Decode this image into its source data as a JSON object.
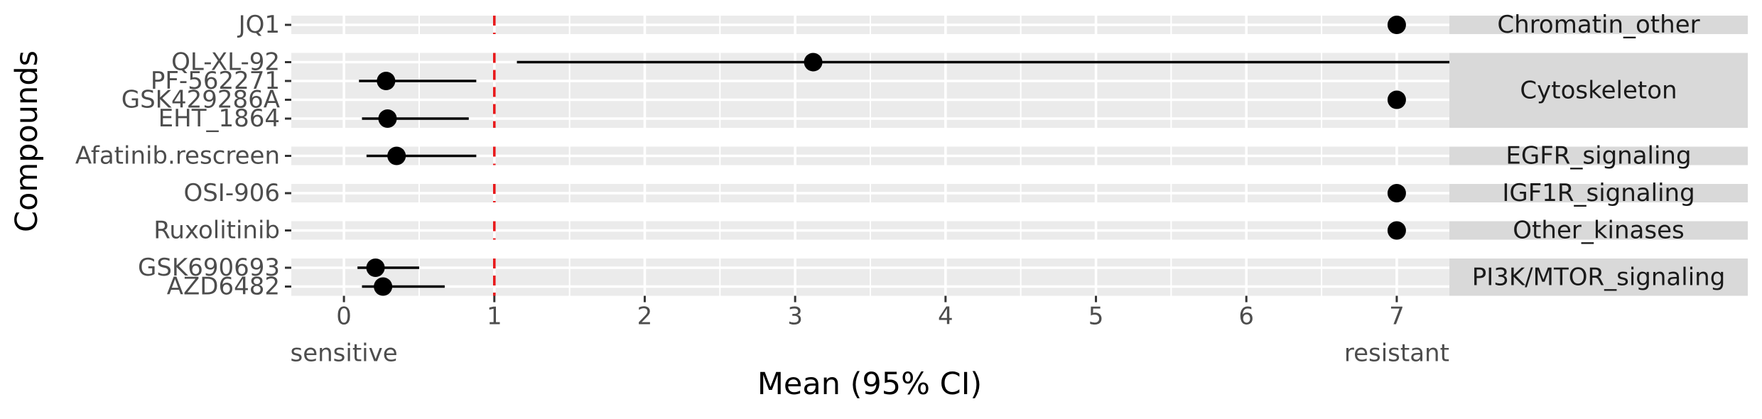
{
  "chart_data": {
    "type": "scatter",
    "subtype": "faceted-forest-plot",
    "xlabel": "Mean (95% CI)",
    "ylabel": "Compounds",
    "xlim": [
      -0.35,
      7.35
    ],
    "x_ticks": [
      0,
      1,
      2,
      3,
      4,
      5,
      6,
      7
    ],
    "x_tick_labels": [
      "0",
      "1",
      "2",
      "3",
      "4",
      "5",
      "6",
      "7"
    ],
    "x_annotations": [
      {
        "x": 0,
        "text": "sensitive"
      },
      {
        "x": 7,
        "text": "resistant"
      }
    ],
    "reference_line": {
      "x": 1,
      "style": "dashed",
      "color": "#e8191b"
    },
    "grid": true,
    "colors": {
      "panel_bg": "#ebebeb",
      "strip_bg": "#d9d9d9",
      "grid": "#ffffff",
      "point": "#000000",
      "text": "#4d4d4d"
    },
    "facets": [
      {
        "label": "Chromatin_other",
        "compounds": [
          {
            "name": "JQ1",
            "mean": 7.0
          }
        ]
      },
      {
        "label": "Cytoskeleton",
        "compounds": [
          {
            "name": "QL-XL-92",
            "mean": 3.12,
            "lower": 1.15,
            "upper": 7.35
          },
          {
            "name": "PF-562271",
            "mean": 0.28,
            "lower": 0.1,
            "upper": 0.88
          },
          {
            "name": "GSK429286A",
            "mean": 7.0
          },
          {
            "name": "EHT_1864",
            "mean": 0.29,
            "lower": 0.12,
            "upper": 0.83
          }
        ]
      },
      {
        "label": "EGFR_signaling",
        "compounds": [
          {
            "name": "Afatinib.rescreen",
            "mean": 0.35,
            "lower": 0.15,
            "upper": 0.88
          }
        ]
      },
      {
        "label": "IGF1R_signaling",
        "compounds": [
          {
            "name": "OSI-906",
            "mean": 7.0
          }
        ]
      },
      {
        "label": "Other_kinases",
        "compounds": [
          {
            "name": "Ruxolitinib",
            "mean": 7.0
          }
        ]
      },
      {
        "label": "PI3K/MTOR_signaling",
        "compounds": [
          {
            "name": "GSK690693",
            "mean": 0.21,
            "lower": 0.09,
            "upper": 0.5
          },
          {
            "name": "AZD6482",
            "mean": 0.26,
            "lower": 0.12,
            "upper": 0.67
          }
        ]
      }
    ]
  }
}
